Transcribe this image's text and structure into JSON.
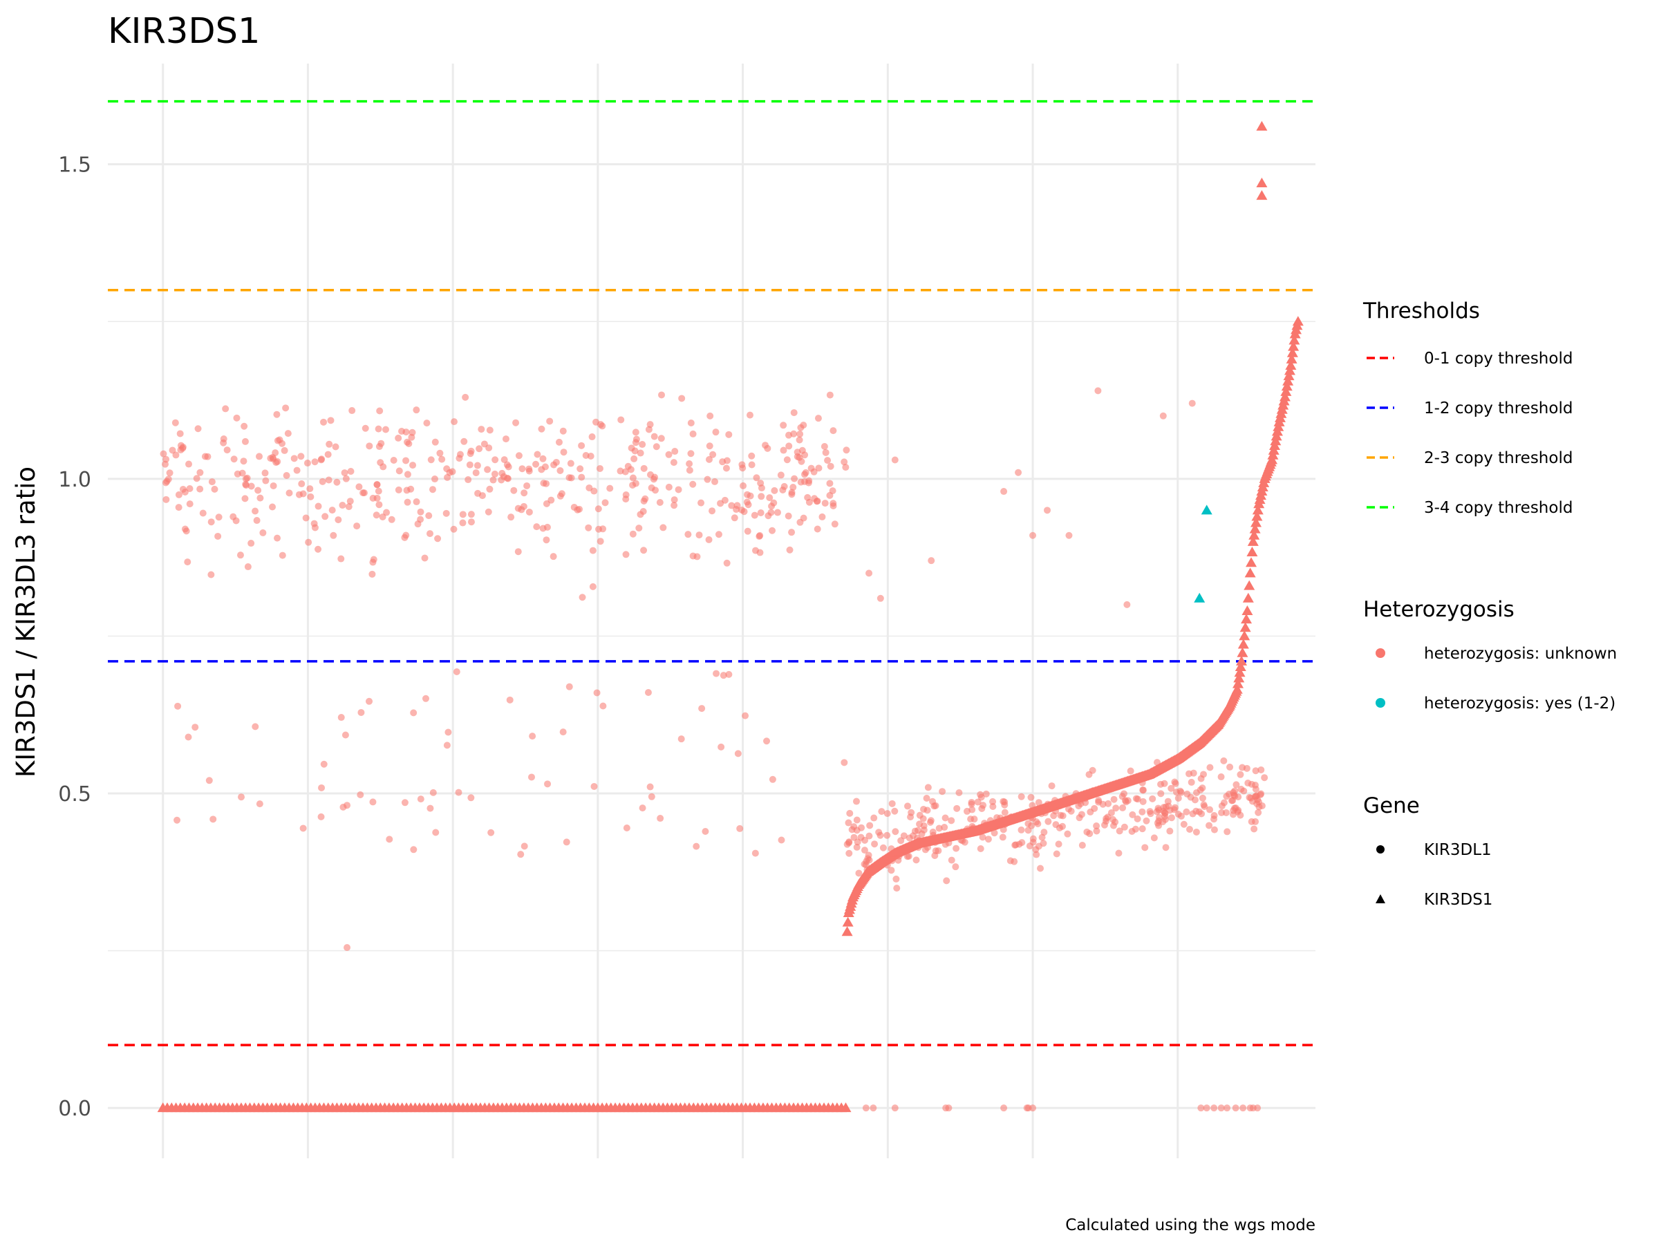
{
  "chart_data": {
    "type": "scatter",
    "title": "KIR3DS1",
    "ylabel": "KIR3DS1 / KIR3DL3 ratio",
    "xlabel": "",
    "caption": "Calculated using the wgs mode",
    "ylim": [
      -0.08,
      1.66
    ],
    "xlim": [
      -38,
      795
    ],
    "y_ticks": [
      {
        "value": 0.0,
        "label": "0.0"
      },
      {
        "value": 0.5,
        "label": "0.5"
      },
      {
        "value": 1.0,
        "label": "1.0"
      },
      {
        "value": 1.5,
        "label": "1.5"
      }
    ],
    "y_minor_ticks": [
      0.25,
      0.75,
      1.25
    ],
    "x_gridlines": [
      0,
      100,
      200,
      300,
      400,
      500,
      600,
      700
    ],
    "grid": true,
    "x_tick_labels_visible": false,
    "thresholds": [
      {
        "name": "0-1 copy threshold",
        "value": 0.1,
        "color": "#ff0000"
      },
      {
        "name": "1-2 copy threshold",
        "value": 0.71,
        "color": "#0000ff"
      },
      {
        "name": "2-3 copy threshold",
        "value": 1.3,
        "color": "#ffa500"
      },
      {
        "name": "3-4 copy threshold",
        "value": 1.6,
        "color": "#00ff00"
      }
    ],
    "legends": [
      {
        "title": "Thresholds",
        "items": [
          {
            "label": "0-1 copy threshold",
            "key": "dash",
            "color": "#ff0000"
          },
          {
            "label": "1-2 copy threshold",
            "key": "dash",
            "color": "#0000ff"
          },
          {
            "label": "2-3 copy threshold",
            "key": "dash",
            "color": "#ffa500"
          },
          {
            "label": "3-4 copy threshold",
            "key": "dash",
            "color": "#00ff00"
          }
        ]
      },
      {
        "title": "Heterozygosis",
        "items": [
          {
            "label": "heterozygosis: unknown",
            "key": "dot",
            "color": "#f8766d"
          },
          {
            "label": "heterozygosis: yes (1-2)",
            "key": "dot",
            "color": "#00bfc4"
          }
        ]
      },
      {
        "title": "Gene",
        "items": [
          {
            "label": "KIR3DL1",
            "key": "circle",
            "color": "#000000"
          },
          {
            "label": "KIR3DS1",
            "key": "triangle",
            "color": "#000000"
          }
        ]
      }
    ],
    "series_styles": {
      "KIR3DL1": {
        "shape": "circle",
        "color": "#f8766d",
        "opacity": 0.55
      },
      "KIR3DS1": {
        "shape": "triangle",
        "color": "#f8766d",
        "opacity": 1.0
      }
    },
    "kir3ds1_zero_range": [
      0,
      472
    ],
    "kir3ds1_curve": [
      [
        472,
        0.28
      ],
      [
        473,
        0.31
      ],
      [
        476,
        0.335
      ],
      [
        480,
        0.355
      ],
      [
        486,
        0.375
      ],
      [
        495,
        0.39
      ],
      [
        505,
        0.405
      ],
      [
        520,
        0.42
      ],
      [
        540,
        0.43
      ],
      [
        560,
        0.44
      ],
      [
        580,
        0.455
      ],
      [
        600,
        0.47
      ],
      [
        620,
        0.485
      ],
      [
        640,
        0.5
      ],
      [
        660,
        0.515
      ],
      [
        680,
        0.53
      ],
      [
        700,
        0.555
      ],
      [
        715,
        0.58
      ],
      [
        728,
        0.61
      ],
      [
        736,
        0.64
      ],
      [
        741,
        0.665
      ],
      [
        744,
        0.71
      ],
      [
        746,
        0.75
      ],
      [
        748,
        0.79
      ],
      [
        750,
        0.85
      ],
      [
        752,
        0.9
      ],
      [
        756,
        0.96
      ],
      [
        760,
        1.0
      ],
      [
        765,
        1.03
      ],
      [
        770,
        1.09
      ],
      [
        774,
        1.13
      ],
      [
        778,
        1.18
      ],
      [
        781,
        1.23
      ],
      [
        783,
        1.25
      ]
    ],
    "kir3ds1_top_points": [
      [
        758,
        1.45
      ],
      [
        758,
        1.47
      ],
      [
        758,
        1.56
      ]
    ],
    "kir3ds1_hetero_yes": [
      [
        715,
        0.81
      ],
      [
        720,
        0.95
      ]
    ],
    "kir3dl1_zero_points": [
      485,
      490,
      505,
      540,
      542,
      580,
      596,
      597,
      600,
      716,
      720,
      725,
      730,
      734,
      740,
      745,
      750,
      752,
      755
    ],
    "kir3dl1_scatter_note": "Scattered KIR3DL1 points: x 0-472 around y 0.75-1.34 (mean ~1.0), sparse y 0.25-0.72; x 472-760 around y 0.22-0.66, sparse 0.8-1.15"
  }
}
